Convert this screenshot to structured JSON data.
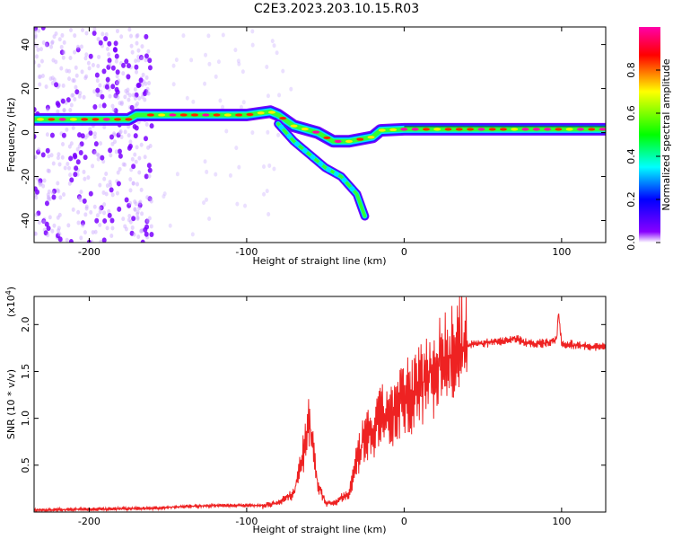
{
  "title": "C2E3.2023.203.10.15.R03",
  "chart_data": [
    {
      "type": "heatmap",
      "xlabel": "Height of straight line (km)",
      "ylabel": "Frequency (Hz)",
      "xlim": [
        -235,
        128
      ],
      "ylim": [
        -50,
        48
      ],
      "xticks": [
        -200,
        -100,
        0,
        100
      ],
      "yticks": [
        -40,
        -20,
        0,
        20,
        40
      ],
      "grid": false,
      "colorbar": {
        "label": "Normalized spectral amplitude",
        "range": [
          0,
          1
        ],
        "ticks": [
          "0.0",
          "0.2",
          "0.4",
          "0.6",
          "0.8"
        ],
        "colors": [
          "#ffffff",
          "#8800ff",
          "#0000ff",
          "#00ffff",
          "#00ff00",
          "#ffff00",
          "#ff0000",
          "#ff00aa"
        ]
      },
      "ridge": {
        "main": [
          [
            -235,
            6
          ],
          [
            -175,
            6
          ],
          [
            -170,
            8
          ],
          [
            -100,
            8
          ],
          [
            -85,
            9.5
          ],
          [
            -80,
            8
          ],
          [
            -70,
            3
          ],
          [
            -55,
            0
          ],
          [
            -45,
            -4
          ],
          [
            -35,
            -4
          ],
          [
            -20,
            -2
          ],
          [
            -15,
            1
          ],
          [
            0,
            1.5
          ],
          [
            128,
            1.5
          ]
        ],
        "lower_branch": [
          [
            -80,
            4
          ],
          [
            -70,
            -4
          ],
          [
            -60,
            -10
          ],
          [
            -50,
            -16
          ],
          [
            -40,
            -20
          ],
          [
            -30,
            -28
          ],
          [
            -25,
            -38
          ]
        ]
      },
      "noise_region": [
        -235,
        -160
      ]
    },
    {
      "type": "line",
      "xlabel": "Height of straight line (km)",
      "ylabel": "SNR (10 * v/v)",
      "y_multiplier": "(x10",
      "y_multiplier_exp": "4",
      "y_multiplier_close": ")",
      "xlim": [
        -235,
        128
      ],
      "ylim": [
        0,
        2.3
      ],
      "xticks": [
        -200,
        -100,
        0,
        100
      ],
      "yticks": [
        "0.5",
        "1.0",
        "1.5",
        "2.0"
      ],
      "ytick_values": [
        0.5,
        1.0,
        1.5,
        2.0
      ],
      "line_color": "#ee2222",
      "series": [
        {
          "x": [
            -235,
            -200,
            -160,
            -140,
            -120,
            -100,
            -90,
            -80,
            -70,
            -65,
            -60,
            -57,
            -55,
            -50,
            -45,
            -40,
            -35,
            -30,
            -25,
            -20,
            -15,
            -10,
            -5,
            0,
            10,
            20,
            30,
            40,
            50,
            60,
            70,
            80,
            90,
            97,
            98,
            100,
            110,
            128
          ],
          "y": [
            0.02,
            0.03,
            0.04,
            0.06,
            0.07,
            0.07,
            0.07,
            0.1,
            0.2,
            0.55,
            0.95,
            0.6,
            0.3,
            0.1,
            0.08,
            0.15,
            0.2,
            0.55,
            0.8,
            0.85,
            1.0,
            1.05,
            1.1,
            1.2,
            1.35,
            1.55,
            1.65,
            1.78,
            1.8,
            1.82,
            1.85,
            1.8,
            1.8,
            1.85,
            2.15,
            1.8,
            1.78,
            1.76
          ]
        }
      ]
    }
  ]
}
